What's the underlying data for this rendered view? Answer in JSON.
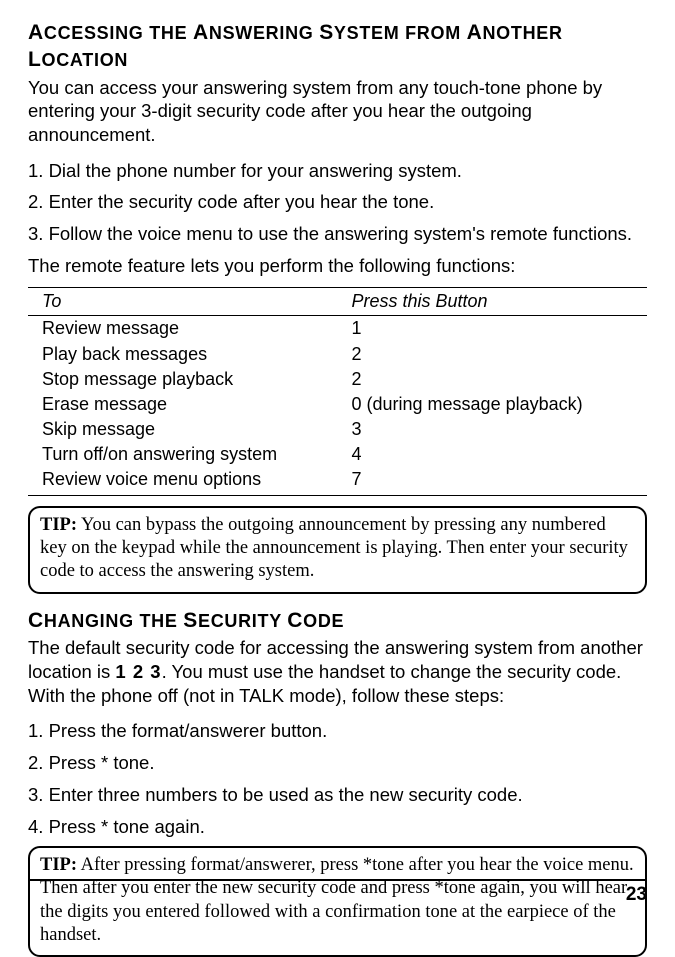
{
  "section1": {
    "heading_html": "<span class='cap'>A</span>CCESSING THE <span class='cap'>A</span>NSWERING <span class='cap'>S</span>YSTEM FROM <span class='cap'>A</span>NOTHER <span class='cap'>L</span>OCATION",
    "intro": "You can access your answering system from any touch-tone phone by entering your 3-digit security code after you hear the outgoing announcement.",
    "steps": [
      "1.  Dial the phone number for your answering system.",
      "2. Enter the security code after you hear the tone.",
      "3. Follow the voice menu to use the answering system's remote functions."
    ],
    "followup": "The remote feature lets you perform the following functions:"
  },
  "table": {
    "col1": "To",
    "col2": "Press this Button",
    "rows": [
      [
        "Review message",
        "1"
      ],
      [
        "Play back messages",
        "2"
      ],
      [
        "Stop message playback",
        "2"
      ],
      [
        "Erase message",
        "0 (during message playback)"
      ],
      [
        "Skip message",
        "3"
      ],
      [
        "Turn off/on answering system",
        "4"
      ],
      [
        "Review voice menu options",
        "7"
      ]
    ]
  },
  "tip1": {
    "label": "TIP:",
    "text": " You can bypass the outgoing announcement by pressing any numbered key on the keypad while the announcement is playing. Then enter your security code to access the answering system."
  },
  "section2": {
    "heading_html": "<span class='cap'>C</span>HANGING THE <span class='cap'>S</span>ECURITY <span class='cap'>C</span>ODE",
    "intro_pre": "The default security code for accessing the answering system from another location is ",
    "default_code": "1 2 3",
    "intro_post": ". You must use the handset to change the security code. With the phone off (not in TALK mode), follow these steps:",
    "steps": [
      "1.  Press the format/answerer button.",
      "2. Press * tone.",
      "3. Enter three numbers to be used as the new security code.",
      "4. Press * tone again."
    ]
  },
  "tip2": {
    "label": "TIP:",
    "text": " After pressing format/answerer, press *tone after you hear the voice menu. Then after you enter the new security code and press *tone again, you will hear the digits you entered followed with a confirmation tone at the earpiece of the handset."
  },
  "page_number": "23"
}
